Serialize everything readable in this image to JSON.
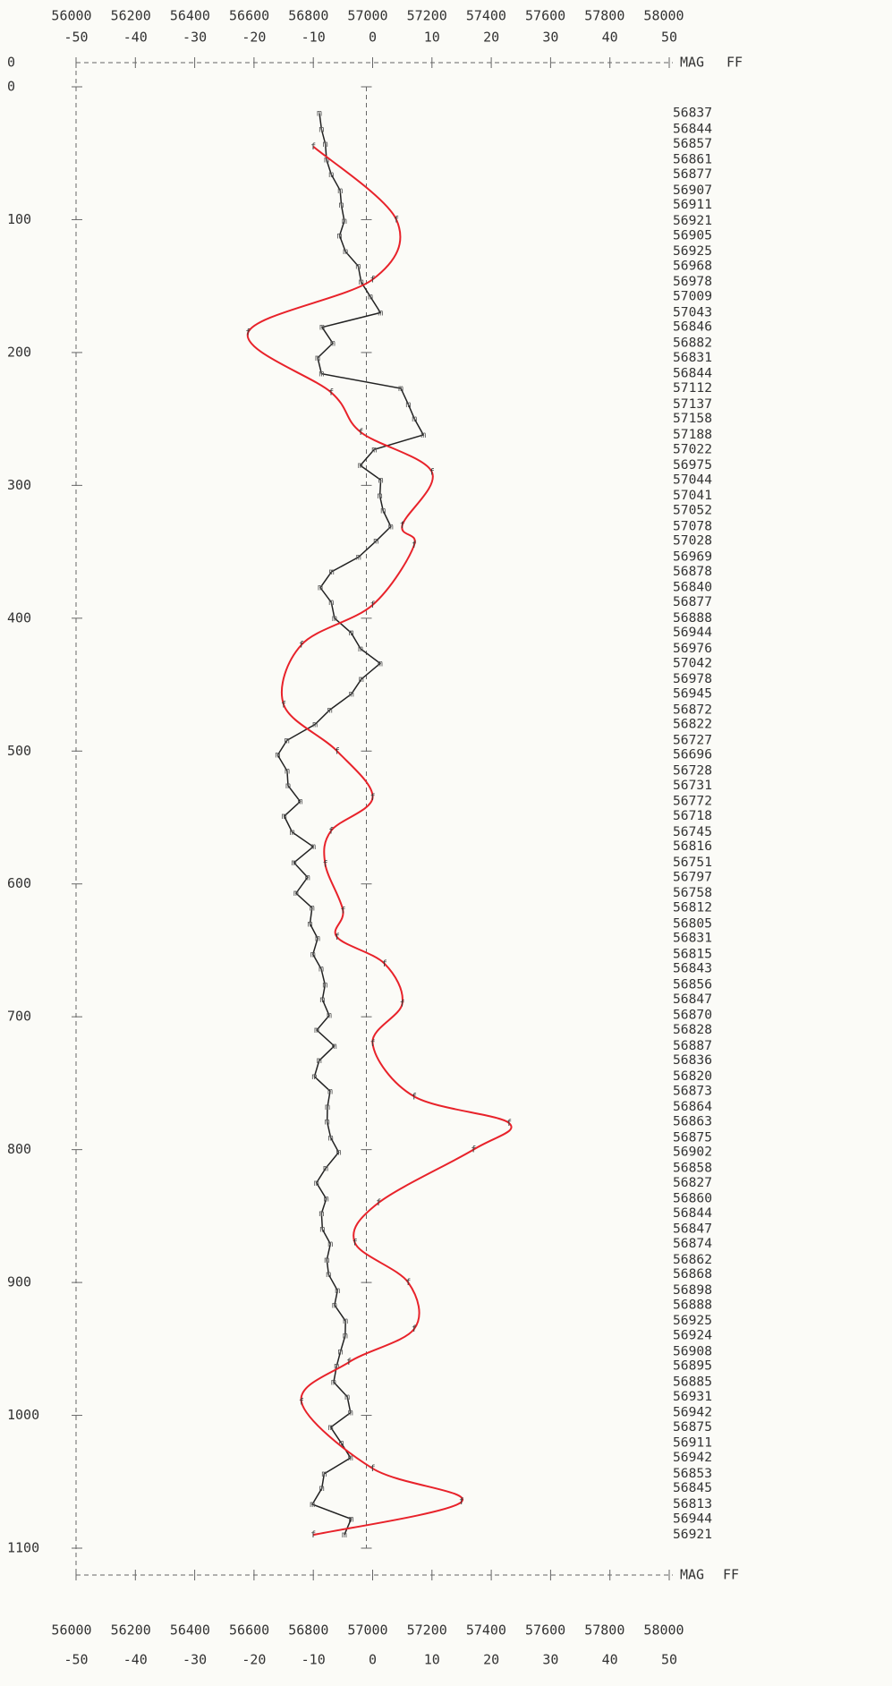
{
  "chart_data": {
    "type": "profile",
    "corner_label": "0",
    "mag_axis_label": "MAG",
    "ff_axis_label": "FF",
    "depth_ticks": [
      0,
      100,
      200,
      300,
      400,
      500,
      600,
      700,
      800,
      900,
      1000,
      1100
    ],
    "depth_lim": [
      0,
      1100
    ],
    "mag_lim": [
      56000,
      58000
    ],
    "mag_ticks": [
      56000,
      56200,
      56400,
      56600,
      56800,
      57000,
      57200,
      57400,
      57600,
      57800,
      58000
    ],
    "ff_lim": [
      -50,
      50
    ],
    "ff_ticks": [
      -50,
      -40,
      -30,
      -20,
      -10,
      0,
      10,
      20,
      30,
      40,
      50
    ],
    "series": [
      {
        "name": "MAG",
        "color": "#222222",
        "marker": "m",
        "depth": [
          20,
          32,
          43,
          55,
          66,
          78,
          89,
          101,
          112,
          124,
          135,
          147,
          158,
          170,
          181,
          193,
          204,
          216,
          227,
          239,
          250,
          262,
          273,
          285,
          296,
          308,
          319,
          331,
          342,
          354,
          365,
          377,
          388,
          400,
          411,
          423,
          434,
          446,
          457,
          469,
          480,
          492,
          503,
          515,
          526,
          538,
          549,
          561,
          572,
          584,
          595,
          607,
          618,
          630,
          641,
          653,
          664,
          676,
          687,
          699,
          710,
          722,
          733,
          745,
          756,
          768,
          779,
          791,
          802,
          814,
          825,
          837,
          848,
          860,
          871,
          883,
          894,
          906,
          917,
          929,
          940,
          952,
          963,
          975,
          986,
          998,
          1009,
          1021,
          1032,
          1044,
          1055,
          1067,
          1078,
          1090
        ],
        "values": [
          56837,
          56844,
          56857,
          56861,
          56877,
          56907,
          56911,
          56921,
          56905,
          56925,
          56968,
          56978,
          57009,
          57043,
          56846,
          56882,
          56831,
          56844,
          57112,
          57137,
          57158,
          57188,
          57022,
          56975,
          57044,
          57041,
          57052,
          57078,
          57028,
          56969,
          56878,
          56840,
          56877,
          56888,
          56944,
          56976,
          57042,
          56978,
          56945,
          56872,
          56822,
          56727,
          56696,
          56728,
          56731,
          56772,
          56718,
          56745,
          56816,
          56751,
          56797,
          56758,
          56812,
          56805,
          56831,
          56815,
          56843,
          56856,
          56847,
          56870,
          56828,
          56887,
          56836,
          56820,
          56873,
          56864,
          56863,
          56875,
          56902,
          56858,
          56827,
          56860,
          56844,
          56847,
          56874,
          56862,
          56868,
          56898,
          56888,
          56925,
          56924,
          56908,
          56895,
          56885,
          56931,
          56942,
          56875,
          56911,
          56942,
          56853,
          56845,
          56813,
          56944,
          56921
        ]
      },
      {
        "name": "FF",
        "color": "#e8222a",
        "marker": "f",
        "depth": [
          45,
          100,
          145,
          185,
          230,
          260,
          290,
          330,
          345,
          390,
          420,
          465,
          500,
          535,
          560,
          585,
          620,
          640,
          660,
          690,
          720,
          760,
          780,
          800,
          840,
          870,
          900,
          935,
          960,
          990,
          1040,
          1065,
          1090
        ],
        "values": [
          -10,
          4,
          0,
          -21,
          -7,
          -2,
          10,
          5,
          7,
          0,
          -12,
          -15,
          -6,
          0,
          -7,
          -8,
          -5,
          -6,
          2,
          5,
          0,
          7,
          23,
          17,
          1,
          -3,
          6,
          7,
          -4,
          -12,
          0,
          15,
          -10
        ]
      }
    ]
  }
}
